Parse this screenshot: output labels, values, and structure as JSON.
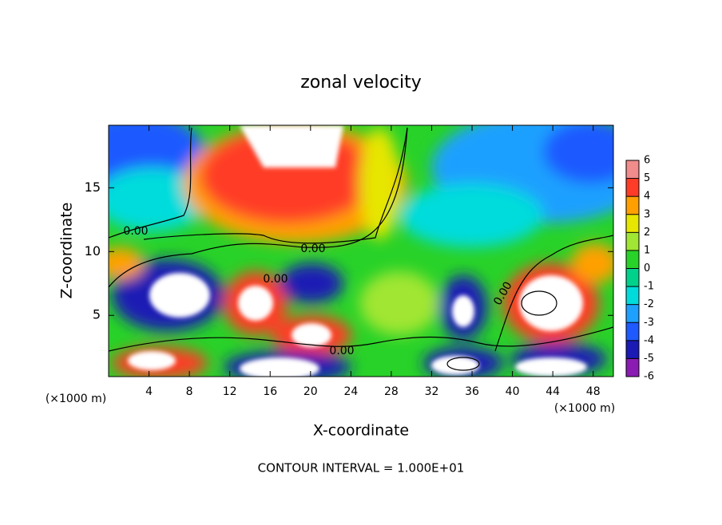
{
  "chart_data": {
    "type": "contour",
    "title": "zonal velocity",
    "x_label": "X-coordinate",
    "y_label": "Z-coordinate",
    "x_unit": "(×1000 m)",
    "x_unit_right": "(×1000 m)",
    "footer": "CONTOUR INTERVAL = 1.000E+01",
    "contour_labels": [
      "0.00",
      "0.00",
      "0.00",
      "0.00",
      "0.00"
    ],
    "xlim": [
      0,
      50
    ],
    "xticks": [
      4,
      8,
      12,
      16,
      20,
      24,
      28,
      32,
      36,
      40,
      44,
      48
    ],
    "ylim": [
      0.2,
      19.9
    ],
    "yticks": [
      5,
      10,
      15
    ],
    "colorbar": {
      "ticks": [
        -6,
        -5,
        -4,
        -3,
        -2,
        -1,
        0,
        1,
        2,
        3,
        4,
        5,
        6
      ],
      "colors": [
        "#8a1cb4",
        "#1a1ab4",
        "#1e5aff",
        "#1ea0ff",
        "#00dcdc",
        "#00d28c",
        "#28d228",
        "#a0e632",
        "#e6e600",
        "#ffa000",
        "#ff3c28",
        "#f08c8c"
      ]
    }
  }
}
